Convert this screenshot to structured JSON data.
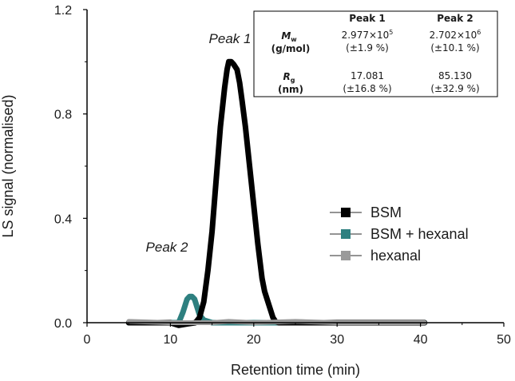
{
  "chart_data": {
    "type": "line",
    "xlabel": "Retention time (min)",
    "ylabel": "LS signal (normalised)",
    "xlim": [
      0,
      50
    ],
    "ylim": [
      0,
      1.2
    ],
    "x_ticks": [
      0,
      10,
      20,
      30,
      40,
      50
    ],
    "y_ticks": [
      0.0,
      0.4,
      0.8,
      1.2
    ],
    "x_tick_labels": [
      "0",
      "10",
      "20",
      "30",
      "40",
      "50"
    ],
    "y_tick_labels": [
      "0.0",
      "0.4",
      "0.8",
      "1.2"
    ],
    "grid": false,
    "legend_position": "center-right",
    "series": [
      {
        "name": "BSM",
        "color": "#000000",
        "x": [
          5,
          8,
          10,
          11,
          12,
          13,
          13.5,
          14,
          14.5,
          15,
          15.5,
          16,
          16.5,
          16.8,
          17,
          17.3,
          17.6,
          18,
          18.3,
          18.6,
          19,
          19.5,
          20,
          20.5,
          21,
          21.3,
          21.6,
          22,
          22.3,
          22.6,
          23,
          24,
          25,
          30,
          35,
          40.5
        ],
        "y": [
          0.0,
          0.0,
          0.0,
          -0.01,
          -0.005,
          0.0,
          0.02,
          0.08,
          0.2,
          0.35,
          0.55,
          0.75,
          0.9,
          0.97,
          1.0,
          1.0,
          0.99,
          0.97,
          0.92,
          0.85,
          0.75,
          0.6,
          0.45,
          0.3,
          0.17,
          0.12,
          0.09,
          0.05,
          0.02,
          0.005,
          0.0,
          0.0,
          0.0,
          0.0,
          0.0,
          0.0
        ]
      },
      {
        "name": "BSM + hexanal",
        "color": "#2e8080",
        "x": [
          5,
          10,
          11,
          11.5,
          12,
          12.3,
          12.6,
          12.9,
          13.2,
          13.5,
          14,
          15,
          20,
          30,
          40.5
        ],
        "y": [
          0.0,
          0.0,
          0.0,
          0.04,
          0.09,
          0.1,
          0.1,
          0.09,
          0.06,
          0.03,
          0.01,
          0.0,
          0.0,
          0.0,
          0.0
        ]
      },
      {
        "name": "hexanal",
        "color": "#9a9a9a",
        "x": [
          5,
          10,
          15,
          17,
          20,
          25,
          30,
          35,
          40.5
        ],
        "y": [
          0.005,
          0.0,
          0.0,
          0.005,
          0.0,
          0.005,
          0.0,
          0.0,
          0.0
        ]
      }
    ],
    "annotations": [
      {
        "text": "Peak 1",
        "x": 17.3,
        "y": 1.04
      },
      {
        "text": "Peak 2",
        "x": 9.6,
        "y": 0.165
      }
    ],
    "table": {
      "headers": [
        "Peak 1",
        "Peak 2"
      ],
      "rows": [
        {
          "label_symbol": "M",
          "label_sub": "w",
          "label_unit": "(g/mol)",
          "values": [
            "2.977×10",
            "2.702×10"
          ],
          "value_sups": [
            "5",
            "6"
          ],
          "errors": [
            "(±1.9 %)",
            "(±10.1 %)"
          ]
        },
        {
          "label_symbol": "R",
          "label_sub": "g",
          "label_unit": "(nm)",
          "values": [
            "17.081",
            "85.130"
          ],
          "value_sups": [
            "",
            ""
          ],
          "errors": [
            "(±16.8 %)",
            "(±32.9 %)"
          ]
        }
      ]
    }
  }
}
